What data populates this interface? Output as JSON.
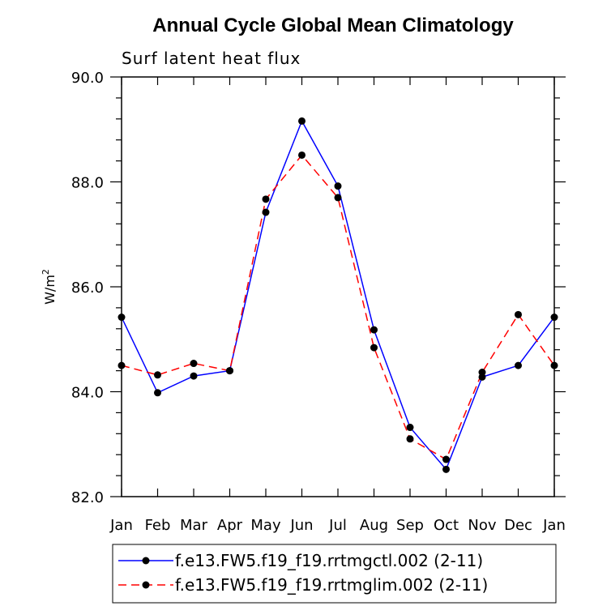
{
  "chart_data": {
    "type": "line",
    "title": "Annual Cycle Global Mean Climatology",
    "subtitle": "Surf latent heat flux",
    "xlabel": "",
    "ylabel": "W/m",
    "ylabel_superscript": "2",
    "ylim": [
      82.0,
      90.0
    ],
    "y_ticks": [
      "82.0",
      "84.0",
      "86.0",
      "88.0",
      "90.0"
    ],
    "categories": [
      "Jan",
      "Feb",
      "Mar",
      "Apr",
      "May",
      "Jun",
      "Jul",
      "Aug",
      "Sep",
      "Oct",
      "Nov",
      "Dec",
      "Jan"
    ],
    "series": [
      {
        "name": "f.e13.FW5.f19_f19.rrtmgctl.002 (2-11)",
        "color": "#0000ff",
        "dash": "solid",
        "values": [
          85.42,
          83.98,
          84.3,
          84.4,
          87.42,
          89.16,
          87.92,
          85.18,
          83.32,
          82.52,
          84.28,
          84.5,
          85.42
        ]
      },
      {
        "name": "f.e13.FW5.f19_f19.rrtmglim.002 (2-11)",
        "color": "#ff0000",
        "dash": "dashed",
        "values": [
          84.5,
          84.32,
          84.54,
          84.4,
          87.67,
          88.51,
          87.7,
          84.84,
          83.1,
          82.71,
          84.37,
          85.47,
          84.5
        ]
      }
    ]
  }
}
